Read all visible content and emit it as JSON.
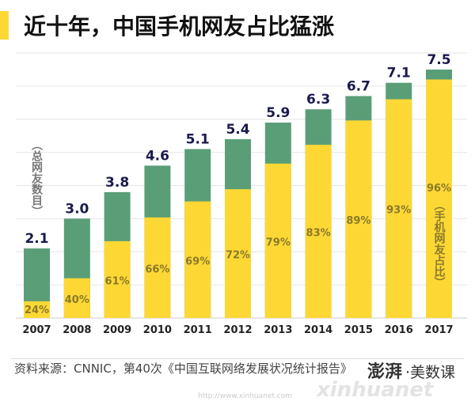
{
  "title": "近十年，中国手机网友占比猛涨",
  "source": "资料来源：CNNIC，第40次《中国互联网络发展状况统计报告》",
  "logo": {
    "brand": "澎湃",
    "sub": "·美数课",
    "watermark": "xinhuanet",
    "watermark_url": "http://www.xinhuanet.com"
  },
  "colors": {
    "total": "#5A9E78",
    "mobile": "#FDD835",
    "value_label": "#1A1A4E",
    "pct_label": "#8A7A2A",
    "accent": "#FDD835"
  },
  "chart_data": {
    "type": "bar",
    "stacked": true,
    "categories": [
      "2007",
      "2008",
      "2009",
      "2010",
      "2011",
      "2012",
      "2013",
      "2014",
      "2015",
      "2016",
      "2017"
    ],
    "totals": [
      2.1,
      3.0,
      3.8,
      4.6,
      5.1,
      5.4,
      5.9,
      6.3,
      6.7,
      7.1,
      7.5
    ],
    "total_labels": [
      "2.1",
      "3.0",
      "3.8",
      "4.6",
      "5.1",
      "5.4",
      "5.9",
      "6.3",
      "6.7",
      "7.1",
      "7.5"
    ],
    "mobile_share_pct": [
      24,
      40,
      61,
      66,
      69,
      72,
      79,
      83,
      89,
      93,
      96
    ],
    "mobile_share_labels": [
      "24%",
      "40%",
      "61%",
      "66%",
      "69%",
      "72%",
      "79%",
      "83%",
      "89%",
      "93%",
      "96%"
    ],
    "series_labels": {
      "total": "（总网友数目）",
      "mobile": "（手机网友占比）"
    },
    "ylim": [
      0,
      8
    ],
    "grid": true
  }
}
